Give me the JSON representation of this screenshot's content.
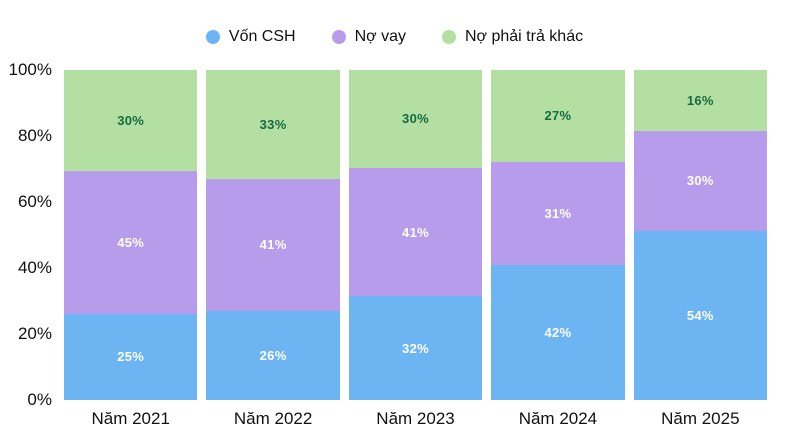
{
  "chart_data": {
    "type": "bar",
    "variant": "stacked-100-percent",
    "title": "",
    "categories": [
      "Năm 2021",
      "Năm 2022",
      "Năm 2023",
      "Năm 2024",
      "Năm 2025"
    ],
    "series": [
      {
        "name": "Vốn CSH",
        "color": "#6db4f3",
        "label_color": "#ffffff",
        "values": [
          25,
          26,
          32,
          42,
          54
        ]
      },
      {
        "name": "Nợ vay",
        "color": "#b69ceb",
        "label_color": "#ffffff",
        "values": [
          45,
          41,
          41,
          31,
          30
        ]
      },
      {
        "name": "Nợ phải trả khác",
        "color": "#b3e0a2",
        "label_color": "#166b3e",
        "values": [
          30,
          33,
          30,
          27,
          16
        ]
      }
    ],
    "value_suffix": "%",
    "y_ticks": [
      100,
      80,
      60,
      40,
      20,
      0
    ],
    "y_tick_suffix": "%",
    "ylim": [
      0,
      100
    ],
    "grid": false,
    "legend_position": "top",
    "background": "#ffffff",
    "text_color": "#111111"
  }
}
